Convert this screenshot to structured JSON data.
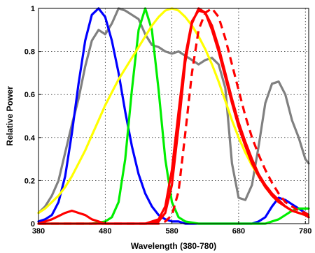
{
  "chart_data": {
    "type": "line",
    "title": "",
    "xlabel": "Wavelength (380-780)",
    "ylabel": "Relative Power",
    "xlim": [
      380,
      785
    ],
    "ylim": [
      0,
      1
    ],
    "x_ticks": [
      380,
      480,
      580,
      680,
      780
    ],
    "y_ticks": [
      0,
      0.2,
      0.4,
      0.6,
      0.8,
      1
    ],
    "y_tick_labels": [
      "0",
      "0.2",
      "0.4",
      "0.6",
      "0.8",
      "1"
    ],
    "grid": true,
    "legend": "none",
    "series": [
      {
        "color": "#808080",
        "style": "solid",
        "x": [
          380,
          390,
          400,
          410,
          420,
          430,
          440,
          450,
          460,
          470,
          480,
          490,
          500,
          510,
          520,
          530,
          540,
          550,
          560,
          570,
          580,
          590,
          600,
          610,
          620,
          630,
          640,
          650,
          660,
          670,
          680,
          690,
          700,
          710,
          720,
          730,
          740,
          750,
          760,
          770,
          780,
          785
        ],
        "y": [
          0.05,
          0.08,
          0.13,
          0.2,
          0.33,
          0.46,
          0.58,
          0.73,
          0.85,
          0.9,
          0.88,
          0.93,
          1.0,
          0.99,
          0.97,
          0.95,
          0.88,
          0.83,
          0.82,
          0.8,
          0.79,
          0.8,
          0.78,
          0.76,
          0.74,
          0.76,
          0.77,
          0.74,
          0.63,
          0.28,
          0.12,
          0.11,
          0.18,
          0.36,
          0.56,
          0.65,
          0.66,
          0.6,
          0.48,
          0.4,
          0.3,
          0.28
        ]
      },
      {
        "color": "#0000ff",
        "style": "solid",
        "x": [
          380,
          390,
          400,
          410,
          420,
          430,
          440,
          450,
          460,
          470,
          480,
          490,
          500,
          510,
          520,
          530,
          540,
          550,
          560,
          570,
          580,
          590,
          600,
          610,
          620,
          630,
          640,
          650,
          660,
          670,
          680,
          690,
          700,
          710,
          720,
          730,
          740,
          750,
          760,
          770,
          780,
          785
        ],
        "y": [
          0.01,
          0.02,
          0.04,
          0.1,
          0.22,
          0.42,
          0.65,
          0.85,
          0.97,
          1.0,
          0.96,
          0.85,
          0.7,
          0.52,
          0.36,
          0.23,
          0.14,
          0.08,
          0.04,
          0.02,
          0.01,
          0.01,
          0.0,
          0.0,
          0.0,
          0.0,
          0.0,
          0.0,
          0.0,
          0.0,
          0.0,
          0.0,
          0.0,
          0.01,
          0.03,
          0.08,
          0.12,
          0.11,
          0.09,
          0.07,
          0.05,
          0.04
        ]
      },
      {
        "color": "#00ee00",
        "style": "solid",
        "x": [
          380,
          400,
          420,
          440,
          460,
          480,
          490,
          500,
          510,
          520,
          530,
          540,
          550,
          560,
          570,
          580,
          590,
          600,
          620,
          640,
          660,
          680,
          700,
          720,
          740,
          750,
          760,
          770,
          780,
          785
        ],
        "y": [
          0.0,
          0.0,
          0.0,
          0.0,
          0.0,
          0.01,
          0.03,
          0.1,
          0.3,
          0.62,
          0.9,
          1.0,
          0.9,
          0.62,
          0.3,
          0.1,
          0.03,
          0.01,
          0.0,
          0.0,
          0.0,
          0.0,
          0.0,
          0.0,
          0.02,
          0.04,
          0.06,
          0.07,
          0.07,
          0.07
        ]
      },
      {
        "color": "#ffff00",
        "style": "solid",
        "x": [
          380,
          390,
          400,
          410,
          420,
          430,
          440,
          450,
          460,
          470,
          480,
          490,
          500,
          510,
          520,
          530,
          540,
          550,
          560,
          570,
          580,
          590,
          600,
          610,
          620,
          630,
          640,
          650,
          660,
          670,
          680,
          690,
          700,
          710,
          720,
          730,
          740,
          750,
          760,
          770,
          780,
          785
        ],
        "y": [
          0.05,
          0.07,
          0.1,
          0.13,
          0.17,
          0.22,
          0.28,
          0.34,
          0.41,
          0.48,
          0.55,
          0.61,
          0.67,
          0.72,
          0.77,
          0.82,
          0.87,
          0.92,
          0.96,
          0.99,
          1.0,
          0.99,
          0.96,
          0.92,
          0.87,
          0.81,
          0.74,
          0.66,
          0.57,
          0.48,
          0.4,
          0.33,
          0.27,
          0.22,
          0.17,
          0.13,
          0.1,
          0.08,
          0.06,
          0.05,
          0.04,
          0.04
        ]
      },
      {
        "color": "#ff0000",
        "style": "solid",
        "x": [
          380,
          400,
          420,
          430,
          440,
          450,
          460,
          470,
          480,
          490,
          500,
          510,
          520,
          530,
          540,
          550,
          560,
          570,
          580,
          590,
          600,
          610,
          620,
          630,
          640,
          650,
          660,
          670,
          680,
          690,
          700,
          710,
          720,
          730,
          740,
          750,
          760,
          770,
          780,
          785
        ],
        "y": [
          0.0,
          0.02,
          0.05,
          0.06,
          0.05,
          0.04,
          0.02,
          0.01,
          0.0,
          0.0,
          0.0,
          0.0,
          0.0,
          0.0,
          0.0,
          0.0,
          0.01,
          0.05,
          0.18,
          0.45,
          0.75,
          0.93,
          1.0,
          0.98,
          0.9,
          0.8,
          0.68,
          0.56,
          0.45,
          0.36,
          0.28,
          0.22,
          0.17,
          0.13,
          0.1,
          0.08,
          0.06,
          0.05,
          0.04,
          0.03
        ]
      },
      {
        "color": "#ff0000",
        "style": "solid",
        "x": [
          380,
          400,
          420,
          440,
          460,
          480,
          500,
          520,
          540,
          560,
          570,
          580,
          590,
          600,
          610,
          620,
          630,
          640,
          650,
          660,
          670,
          680,
          690,
          700,
          710,
          720,
          730,
          740,
          750,
          760,
          770,
          780,
          785
        ],
        "y": [
          0,
          0,
          0,
          0,
          0,
          0,
          0,
          0,
          0,
          0.02,
          0.08,
          0.25,
          0.52,
          0.78,
          0.94,
          0.99,
          0.98,
          0.92,
          0.82,
          0.7,
          0.58,
          0.47,
          0.38,
          0.3,
          0.23,
          0.18,
          0.14,
          0.11,
          0.08,
          0.06,
          0.05,
          0.04,
          0.03
        ]
      },
      {
        "color": "#ff0000",
        "style": "dashed",
        "x": [
          380,
          400,
          420,
          440,
          460,
          480,
          500,
          520,
          540,
          560,
          570,
          580,
          590,
          600,
          610,
          620,
          630,
          640,
          650,
          660,
          670,
          680,
          690,
          700,
          710,
          720,
          730,
          740,
          750,
          760,
          770,
          780,
          785
        ],
        "y": [
          0,
          0,
          0,
          0,
          0,
          0,
          0,
          0,
          0,
          0.0,
          0.01,
          0.04,
          0.15,
          0.42,
          0.7,
          0.9,
          0.98,
          1.0,
          0.96,
          0.86,
          0.74,
          0.62,
          0.5,
          0.4,
          0.32,
          0.25,
          0.19,
          0.14,
          0.1,
          0.08,
          0.06,
          0.05,
          0.04
        ]
      }
    ]
  }
}
